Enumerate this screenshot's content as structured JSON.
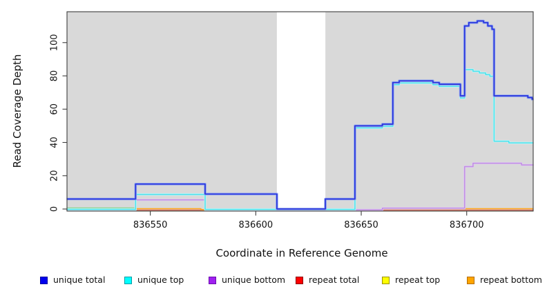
{
  "figure": {
    "background_color": "#ffffff",
    "plot_background_color": "#d9d9d9",
    "box_border_color": "#3c3c3c",
    "text_color": "#111111",
    "gap_region": {
      "x_start": 836610,
      "x_end": 836633,
      "color": "#ffffff"
    }
  },
  "chart_data": {
    "type": "line",
    "subtype": "step-coverage",
    "title": "",
    "xlabel": "Coordinate in Reference Genome",
    "ylabel": "Read Coverage Depth",
    "xlim": [
      836510,
      836732
    ],
    "ylim": [
      0,
      118
    ],
    "x_ticks": [
      836550,
      836600,
      836650,
      836700
    ],
    "y_ticks": [
      0,
      20,
      40,
      60,
      80,
      100
    ],
    "grid": false,
    "legend_position": "bottom",
    "series": [
      {
        "name": "unique total",
        "color": "#2a35dc",
        "legend_fill": "#0000ee",
        "legend_border": "#0000a0",
        "points": [
          [
            836510,
            6
          ],
          [
            836543,
            15
          ],
          [
            836576,
            9
          ],
          [
            836610,
            0
          ],
          [
            836633,
            6
          ],
          [
            836647,
            50
          ],
          [
            836660,
            51
          ],
          [
            836665,
            76
          ],
          [
            836668,
            77
          ],
          [
            836684,
            76
          ],
          [
            836687,
            75
          ],
          [
            836697,
            68
          ],
          [
            836699,
            110
          ],
          [
            836701,
            112
          ],
          [
            836705,
            113
          ],
          [
            836708,
            112
          ],
          [
            836710,
            110
          ],
          [
            836712,
            108
          ],
          [
            836713,
            68
          ],
          [
            836729,
            67
          ],
          [
            836731,
            66
          ]
        ]
      },
      {
        "name": "unique top",
        "color": "#4fe0ea",
        "legend_fill": "#00ffff",
        "legend_border": "#009aa4",
        "points": [
          [
            836510,
            0
          ],
          [
            836543,
            9
          ],
          [
            836576,
            0
          ],
          [
            836647,
            49
          ],
          [
            836660,
            50
          ],
          [
            836665,
            75
          ],
          [
            836668,
            76
          ],
          [
            836684,
            75
          ],
          [
            836687,
            74
          ],
          [
            836697,
            67
          ],
          [
            836699,
            84
          ],
          [
            836703,
            83
          ],
          [
            836706,
            82
          ],
          [
            836709,
            81
          ],
          [
            836711,
            80
          ],
          [
            836713,
            41
          ],
          [
            836720,
            40
          ]
        ]
      },
      {
        "name": "unique bottom",
        "color": "#c08fe2",
        "legend_fill": "#a020f0",
        "legend_border": "#6a0dad",
        "points": [
          [
            836510,
            0
          ],
          [
            836543,
            6
          ],
          [
            836576,
            0
          ],
          [
            836660,
            1
          ],
          [
            836699,
            26
          ],
          [
            836703,
            28
          ],
          [
            836726,
            27
          ]
        ]
      },
      {
        "name": "repeat total",
        "color": "#cd5e74",
        "legend_fill": "#ff0000",
        "legend_border": "#8b0000",
        "points": [
          [
            836510,
            0
          ]
        ]
      },
      {
        "name": "repeat top",
        "color": "#e8e23a",
        "legend_fill": "#ffff00",
        "legend_border": "#998f00",
        "points": [
          [
            836510,
            0
          ]
        ]
      },
      {
        "name": "repeat bottom",
        "color": "#ffa51e",
        "legend_fill": "#ffa500",
        "legend_border": "#b36b00",
        "points": [
          [
            836510,
            0
          ],
          [
            836543,
            0.5
          ],
          [
            836574,
            0
          ],
          [
            836660,
            0.5
          ]
        ]
      }
    ],
    "zero_overlap_segment": {
      "x_start": 836510,
      "x_end": 836543,
      "value": 0.6,
      "color": "#8cd694"
    }
  }
}
